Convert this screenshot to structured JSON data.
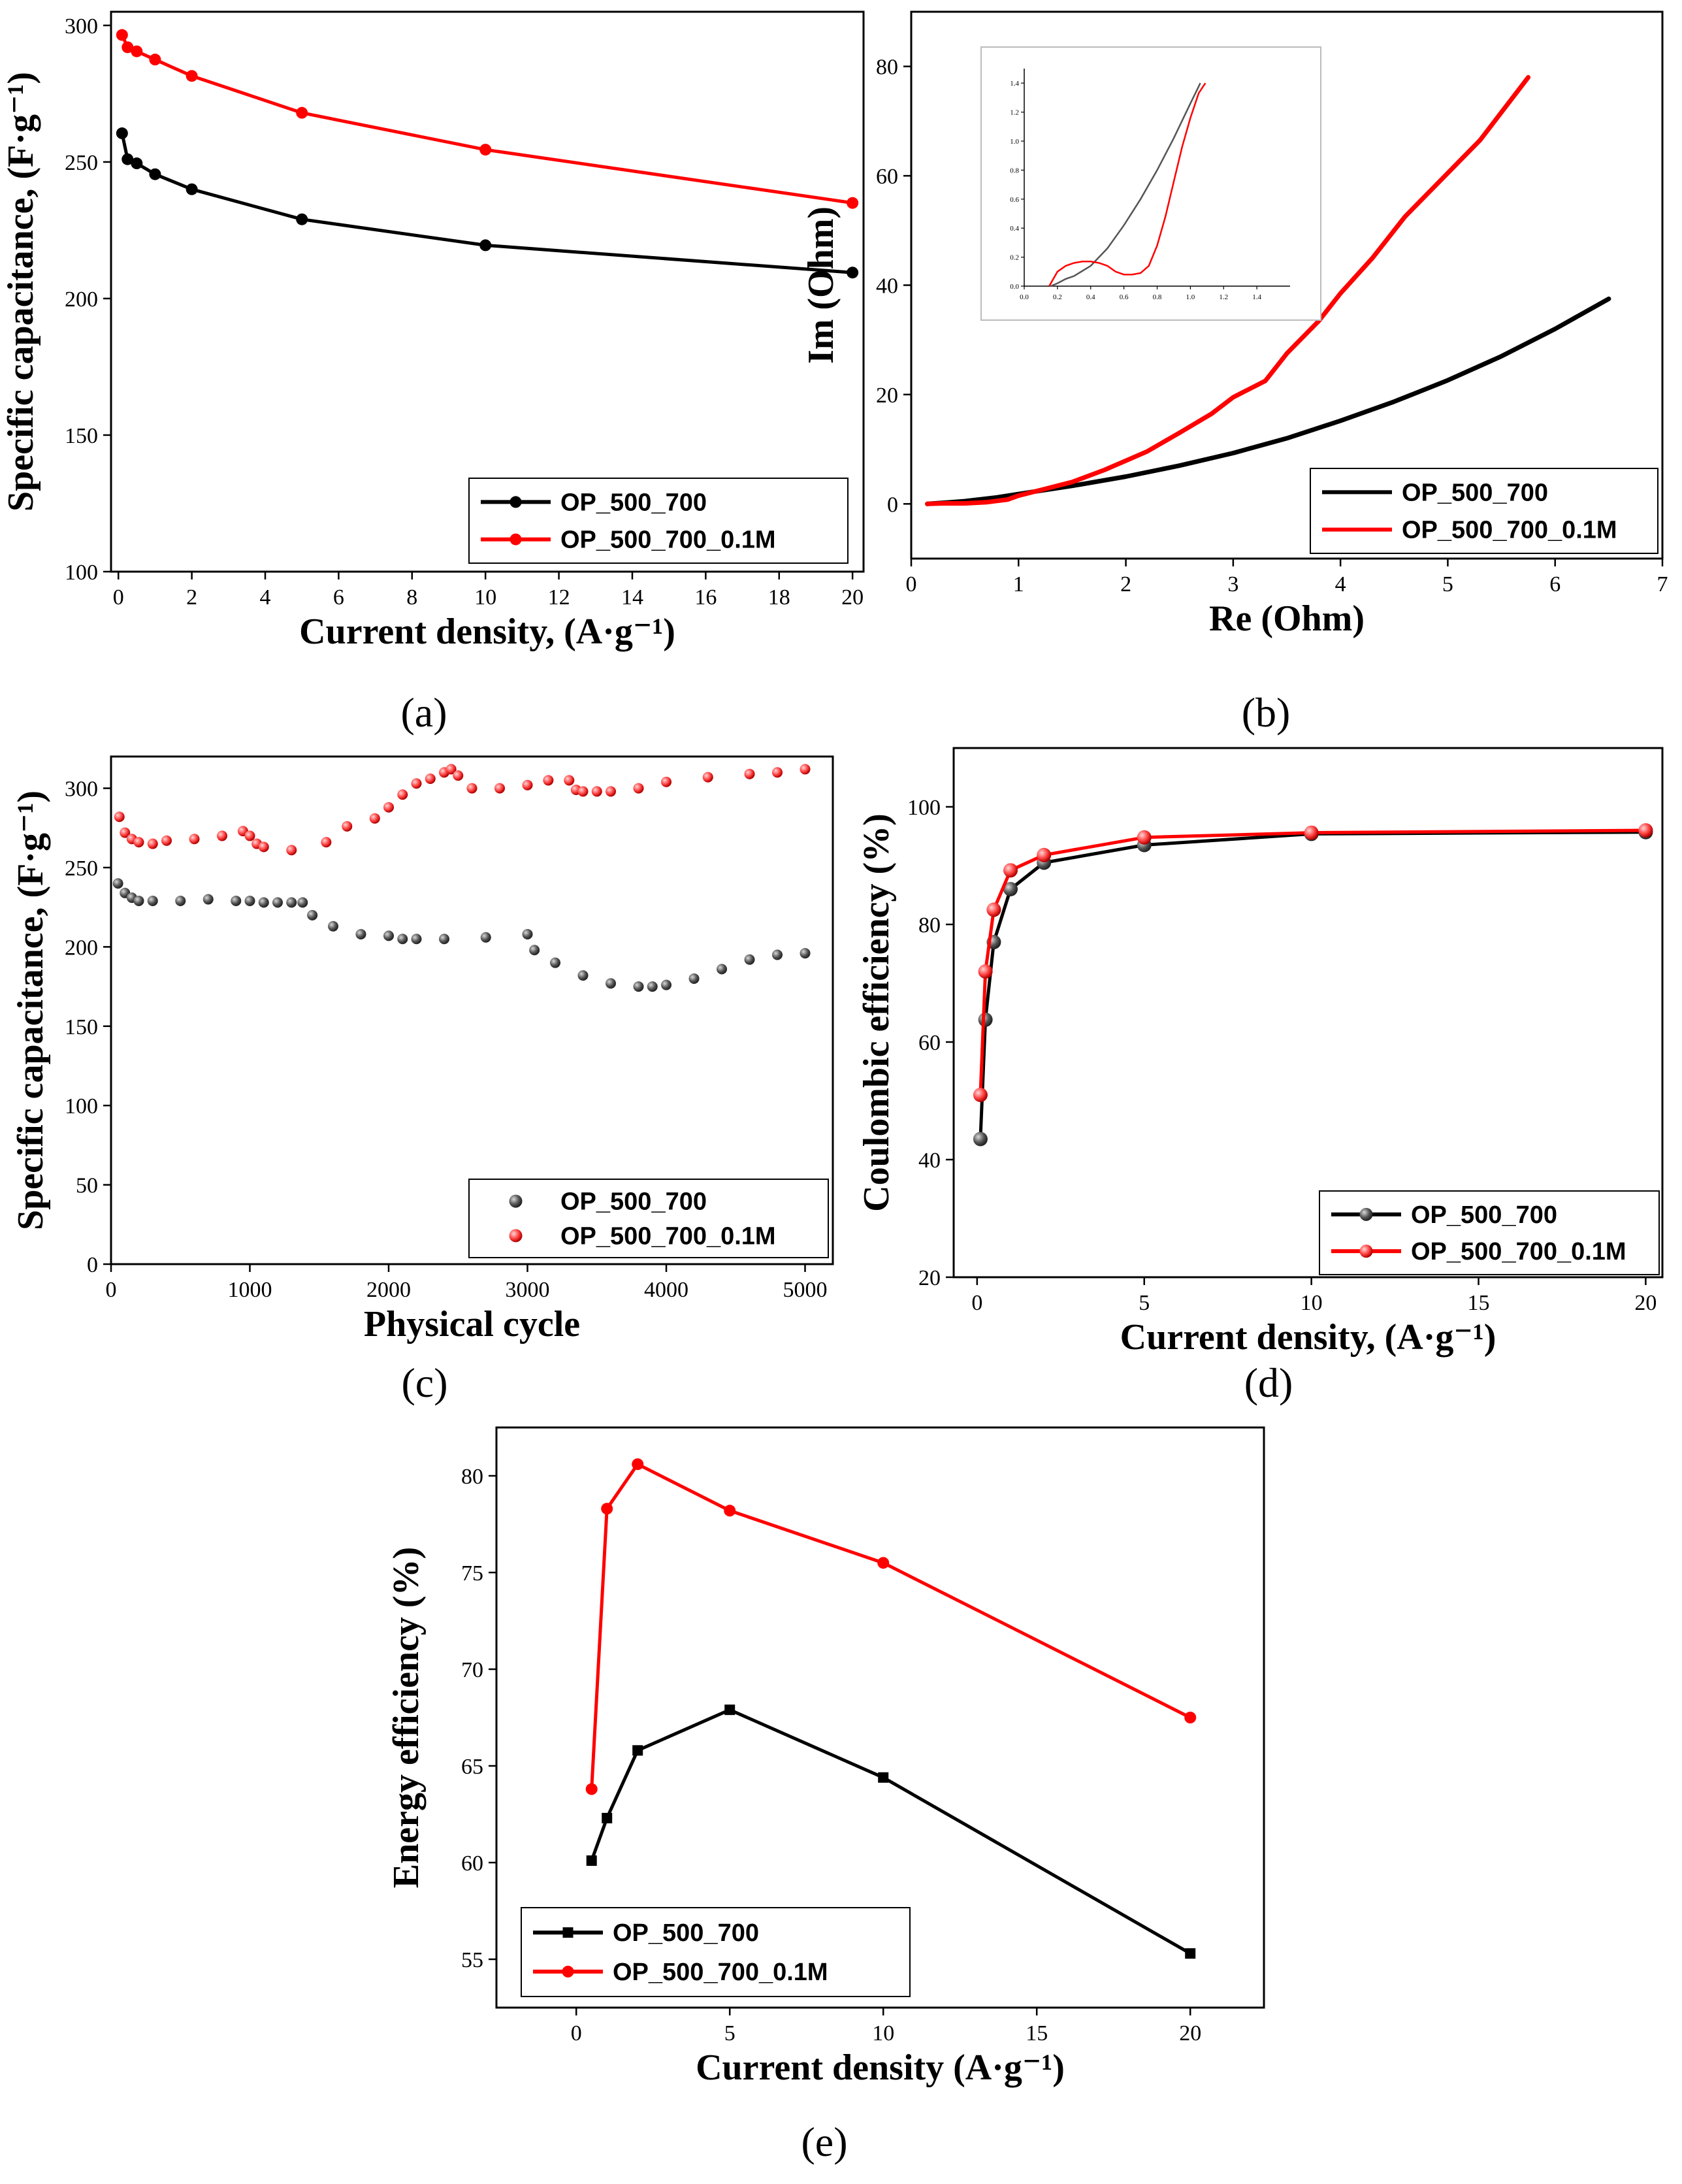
{
  "figure": {
    "panels": [
      "a",
      "b",
      "c",
      "d",
      "e"
    ]
  },
  "chart_data": [
    {
      "panel": "a",
      "caption": "(a)",
      "type": "line",
      "xlabel": "Current density, (A·g⁻¹)",
      "ylabel": "Specific capacitance, (F·g⁻¹)",
      "xlim": [
        -0.2,
        20.3
      ],
      "ylim": [
        100,
        305
      ],
      "xticks": [
        0,
        2,
        4,
        6,
        8,
        10,
        12,
        14,
        16,
        18,
        20
      ],
      "yticks": [
        100,
        150,
        200,
        250,
        300
      ],
      "legend_position": "bottom-right",
      "series": [
        {
          "name": "OP_500_700",
          "color": "#000000",
          "marker": "circle",
          "x": [
            0.1,
            0.25,
            0.5,
            1,
            2,
            5,
            10,
            20
          ],
          "y": [
            260.5,
            251,
            249.5,
            245.5,
            240,
            229,
            219.5,
            209.5
          ]
        },
        {
          "name": "OP_500_700_0.1M",
          "color": "#ff0000",
          "marker": "circle",
          "x": [
            0.1,
            0.25,
            0.5,
            1,
            2,
            5,
            10,
            20
          ],
          "y": [
            296.5,
            292,
            290.5,
            287.5,
            281.5,
            268,
            254.5,
            235
          ]
        }
      ]
    },
    {
      "panel": "b",
      "caption": "(b)",
      "type": "line",
      "xlabel": "Re (Ohm)",
      "ylabel": "Im (Ohm)",
      "xlim": [
        0,
        7
      ],
      "ylim": [
        -10,
        90
      ],
      "xticks": [
        0,
        1,
        2,
        3,
        4,
        5,
        6,
        7
      ],
      "yticks": [
        0,
        20,
        40,
        60,
        80
      ],
      "legend_position": "bottom-right",
      "series": [
        {
          "name": "OP_500_700",
          "color": "#000000",
          "x": [
            0.15,
            0.3,
            0.5,
            0.8,
            1.0,
            1.5,
            2.0,
            2.5,
            3.0,
            3.5,
            4.0,
            4.5,
            5.0,
            5.5,
            6.0,
            6.5
          ],
          "y": [
            0,
            0.2,
            0.5,
            1.2,
            1.8,
            3.3,
            5.0,
            7.0,
            9.3,
            12.0,
            15.2,
            18.7,
            22.6,
            27.0,
            32.0,
            37.5
          ]
        },
        {
          "name": "OP_500_700_0.1M",
          "color": "#ff0000",
          "x": [
            0.15,
            0.3,
            0.5,
            0.7,
            0.9,
            1.0,
            1.2,
            1.5,
            1.8,
            2.0,
            2.2,
            2.5,
            2.8,
            3.0,
            3.3,
            3.5,
            3.8,
            4.0,
            4.3,
            4.6,
            5.0,
            5.3,
            5.75
          ],
          "y": [
            0,
            0.1,
            0.1,
            0.3,
            0.8,
            1.5,
            2.5,
            4.0,
            6.2,
            7.9,
            9.6,
            13.0,
            16.5,
            19.5,
            22.5,
            27.5,
            33.5,
            38.5,
            45.0,
            52.5,
            60.5,
            66.5,
            78.0
          ]
        }
      ],
      "inset": {
        "xlim": [
          0,
          1.6
        ],
        "ylim": [
          0,
          1.5
        ],
        "xticks": [
          0.0,
          0.2,
          0.4,
          0.6,
          0.8,
          1.0,
          1.2,
          1.4
        ],
        "yticks": [
          0.0,
          0.2,
          0.4,
          0.6,
          0.8,
          1.0,
          1.2,
          1.4
        ],
        "series": [
          {
            "name": "OP_500_700",
            "color": "#555555",
            "x": [
              0.16,
              0.2,
              0.25,
              0.3,
              0.4,
              0.5,
              0.6,
              0.7,
              0.8,
              0.9,
              1.0,
              1.06
            ],
            "y": [
              0.0,
              0.02,
              0.05,
              0.07,
              0.14,
              0.26,
              0.42,
              0.6,
              0.8,
              1.02,
              1.26,
              1.4
            ]
          },
          {
            "name": "OP_500_700_0.1M",
            "color": "#ff0000",
            "x": [
              0.15,
              0.2,
              0.25,
              0.3,
              0.35,
              0.4,
              0.45,
              0.5,
              0.55,
              0.6,
              0.65,
              0.7,
              0.75,
              0.8,
              0.85,
              0.9,
              0.95,
              1.0,
              1.05,
              1.09
            ],
            "y": [
              0.0,
              0.1,
              0.14,
              0.16,
              0.17,
              0.17,
              0.16,
              0.14,
              0.1,
              0.08,
              0.08,
              0.09,
              0.14,
              0.28,
              0.48,
              0.72,
              0.96,
              1.16,
              1.33,
              1.4
            ]
          }
        ]
      }
    },
    {
      "panel": "c",
      "caption": "(c)",
      "type": "scatter",
      "xlabel": "Physical cycle",
      "ylabel": "Specific capacitance, (F·g⁻¹)",
      "xlim": [
        0,
        5200
      ],
      "ylim": [
        0,
        320
      ],
      "xticks": [
        0,
        1000,
        2000,
        3000,
        4000,
        5000
      ],
      "yticks": [
        0,
        50,
        100,
        150,
        200,
        250,
        300
      ],
      "legend_position": "bottom-right",
      "series": [
        {
          "name": "OP_500_700",
          "color": "#555555",
          "marker": "sphere",
          "x": [
            50,
            100,
            150,
            200,
            300,
            500,
            700,
            900,
            1000,
            1100,
            1200,
            1300,
            1380,
            1450,
            1600,
            1800,
            2000,
            2100,
            2200,
            2400,
            2700,
            3000,
            3050,
            3200,
            3400,
            3600,
            3800,
            3900,
            4000,
            4200,
            4400,
            4600,
            4800,
            5000
          ],
          "y": [
            240,
            234,
            231,
            229,
            229,
            229,
            230,
            229,
            229,
            228,
            228,
            228,
            228,
            220,
            213,
            208,
            207,
            205,
            205,
            205,
            206,
            208,
            198,
            190,
            182,
            177,
            175,
            175,
            176,
            180,
            186,
            192,
            195,
            196
          ]
        },
        {
          "name": "OP_500_700_0.1M",
          "color": "#ff4444",
          "marker": "sphere",
          "x": [
            60,
            100,
            150,
            200,
            300,
            400,
            600,
            800,
            950,
            1000,
            1050,
            1100,
            1300,
            1550,
            1700,
            1900,
            2000,
            2100,
            2200,
            2300,
            2400,
            2450,
            2500,
            2600,
            2800,
            3000,
            3150,
            3300,
            3350,
            3400,
            3500,
            3600,
            3800,
            4000,
            4300,
            4600,
            4800,
            5000
          ],
          "y": [
            282,
            272,
            268,
            266,
            265,
            267,
            268,
            270,
            273,
            270,
            265,
            263,
            261,
            266,
            276,
            281,
            288,
            296,
            303,
            306,
            310,
            312,
            308,
            300,
            300,
            302,
            305,
            305,
            299,
            298,
            298,
            298,
            300,
            304,
            307,
            309,
            310,
            312
          ]
        }
      ]
    },
    {
      "panel": "d",
      "caption": "(d)",
      "type": "line",
      "xlabel": "Current density, (A·g⁻¹)",
      "ylabel": "Coulombic efficiency (%)",
      "xlim": [
        -0.7,
        20.5
      ],
      "ylim": [
        20,
        110
      ],
      "xticks": [
        0,
        5,
        10,
        15,
        20
      ],
      "yticks": [
        20,
        40,
        60,
        80,
        100
      ],
      "legend_position": "bottom-right",
      "series": [
        {
          "name": "OP_500_700",
          "color": "#000000",
          "marker": "sphere",
          "x": [
            0.1,
            0.25,
            0.5,
            1,
            2,
            5,
            10,
            20
          ],
          "y": [
            43.5,
            63.8,
            77,
            86,
            90.5,
            93.5,
            95.4,
            95.7
          ]
        },
        {
          "name": "OP_500_700_0.1M",
          "color": "#ff0000",
          "marker": "sphere",
          "x": [
            0.1,
            0.25,
            0.5,
            1,
            2,
            5,
            10,
            20
          ],
          "y": [
            51,
            72,
            82.5,
            89.2,
            91.8,
            94.8,
            95.6,
            96
          ]
        }
      ]
    },
    {
      "panel": "e",
      "caption": "(e)",
      "type": "line",
      "xlabel": "Current density (A·g⁻¹)",
      "ylabel": "Energy efficiency (%)",
      "xlim": [
        -2.6,
        22.4
      ],
      "ylim": [
        52.5,
        82.5
      ],
      "xticks": [
        0,
        5,
        10,
        15,
        20
      ],
      "yticks": [
        55,
        60,
        65,
        70,
        75,
        80
      ],
      "legend_position": "bottom-left",
      "series": [
        {
          "name": "OP_500_700",
          "color": "#000000",
          "marker": "square",
          "x": [
            0.5,
            1,
            2,
            5,
            10,
            20
          ],
          "y": [
            60.1,
            62.3,
            65.8,
            67.9,
            64.4,
            55.3
          ]
        },
        {
          "name": "OP_500_700_0.1M",
          "color": "#ff0000",
          "marker": "circle",
          "x": [
            0.5,
            1,
            2,
            5,
            10,
            20
          ],
          "y": [
            63.8,
            78.3,
            80.6,
            78.2,
            75.5,
            67.5
          ]
        }
      ]
    }
  ]
}
